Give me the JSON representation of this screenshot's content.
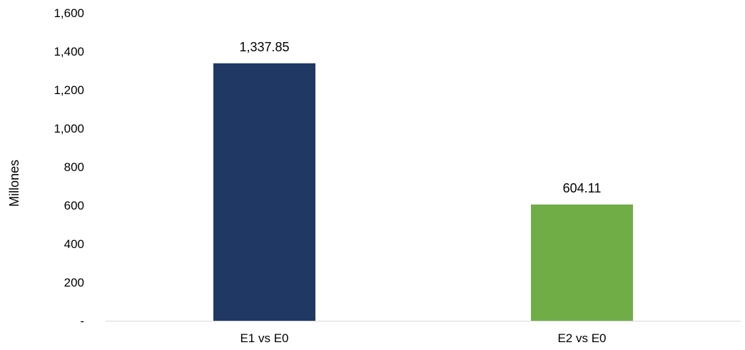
{
  "chart_data": {
    "type": "bar",
    "title": "",
    "xlabel": "",
    "ylabel": "Millones",
    "ylim": [
      0,
      1600
    ],
    "yticks": [
      0,
      200,
      400,
      600,
      800,
      1000,
      1200,
      1400,
      1600
    ],
    "ytick_labels": [
      "-",
      "200",
      "400",
      "600",
      "800",
      "1,000",
      "1,200",
      "1,400",
      "1,600"
    ],
    "categories": [
      "E1 vs E0",
      "E2 vs E0"
    ],
    "values": [
      1337.85,
      604.11
    ],
    "value_labels": [
      "1,337.85",
      "604.11"
    ],
    "bar_colors": [
      "#203864",
      "#70AD47"
    ],
    "grid": false,
    "legend": "none"
  },
  "colors": {
    "baseline": "#d9d9d9",
    "text": "#000000"
  }
}
